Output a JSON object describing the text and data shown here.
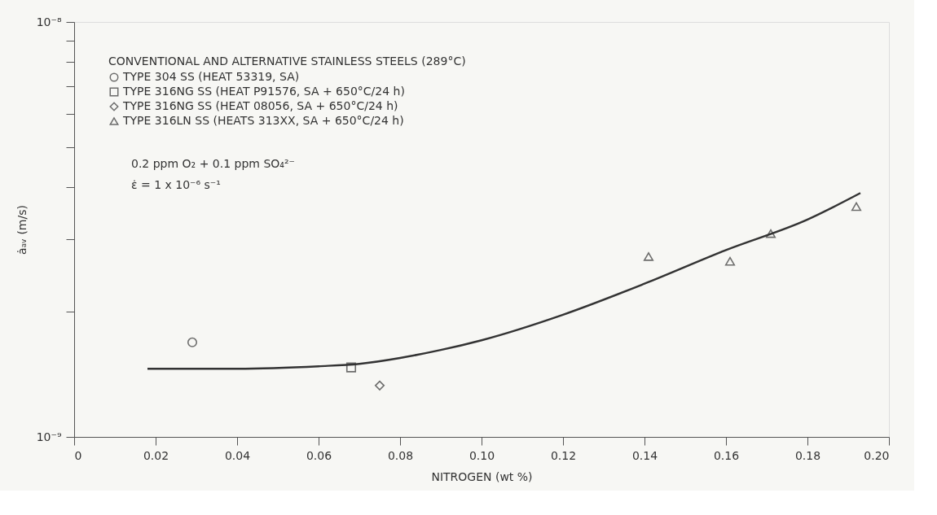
{
  "chart_data": {
    "type": "scatter",
    "xlabel": "NITROGEN (wt %)",
    "ylabel": "ȧₐᵥ (m/s)",
    "legend_title": "CONVENTIONAL AND ALTERNATIVE STAINLESS STEELS (289°C)",
    "legend": "top left",
    "log": "y",
    "grid": false,
    "xlim": [
      0,
      0.2
    ],
    "ylim": [
      1e-09,
      1e-08
    ],
    "xticks": [
      0,
      {
        "value": 0.02,
        "label": "0.02"
      },
      {
        "value": 0.04,
        "label": "0.04"
      },
      {
        "value": 0.06,
        "label": "0.06"
      },
      {
        "value": 0.08,
        "label": "0.08"
      },
      {
        "value": 0.1,
        "label": "0.10"
      },
      {
        "value": 0.12,
        "label": "0.12"
      },
      {
        "value": 0.14,
        "label": "0.14"
      },
      {
        "value": 0.16,
        "label": "0.16"
      },
      {
        "value": 0.18,
        "label": "0.18"
      },
      {
        "value": 0.2,
        "label": "0.20"
      }
    ],
    "yticks": [
      {
        "value": 1e-09,
        "label": "10⁻⁹"
      },
      {
        "value": 2e-09,
        "label": null
      },
      {
        "value": 3e-09,
        "label": null
      },
      {
        "value": 4e-09,
        "label": null
      },
      {
        "value": 5e-09,
        "label": null
      },
      {
        "value": 6e-09,
        "label": null
      },
      {
        "value": 7e-09,
        "label": null
      },
      {
        "value": 8e-09,
        "label": null
      },
      {
        "value": 9e-09,
        "label": null
      },
      {
        "value": 1e-08,
        "label": "10⁻⁸"
      }
    ],
    "annotations": [
      "0.2 ppm O₂ + 0.1 ppm SO₄²⁻",
      "ε̇ = 1 x 10⁻⁶ s⁻¹"
    ],
    "series": [
      {
        "name": "TYPE 304 SS (HEAT 53319, SA)",
        "type": "scatter",
        "marker": "circle",
        "color": "#333333",
        "x": [
          0.029
        ],
        "values": [
          1.69e-09
        ]
      },
      {
        "name": "TYPE 316NG SS (HEAT P91576, SA + 650°C/24 h)",
        "type": "scatter",
        "marker": "square",
        "color": "#333333",
        "x": [
          0.068
        ],
        "values": [
          1.47e-09
        ]
      },
      {
        "name": "TYPE 316NG SS (HEAT 08056, SA + 650°C/24 h)",
        "type": "scatter",
        "marker": "diamond",
        "color": "#333333",
        "x": [
          0.075
        ],
        "values": [
          1.33e-09
        ]
      },
      {
        "name": "TYPE 316LN SS (HEATS 313XX, SA + 650°C/24 h)",
        "type": "scatter",
        "marker": "triangle",
        "color": "#333333",
        "x": [
          0.141,
          0.161,
          0.171,
          0.192
        ],
        "values": [
          2.72e-09,
          2.65e-09,
          3.09e-09,
          3.59e-09
        ]
      },
      {
        "type": "line",
        "marker": "none",
        "line_style": "solid",
        "color": "#333333",
        "x": [
          0.018,
          0.04,
          0.06,
          0.07,
          0.08,
          0.09,
          0.1,
          0.12,
          0.14,
          0.16,
          0.18,
          0.193
        ],
        "values": [
          1.46e-09,
          1.46e-09,
          1.48e-09,
          1.5e-09,
          1.55e-09,
          1.62e-09,
          1.71e-09,
          1.97e-09,
          2.34e-09,
          2.82e-09,
          3.34e-09,
          3.87e-09
        ]
      }
    ]
  }
}
